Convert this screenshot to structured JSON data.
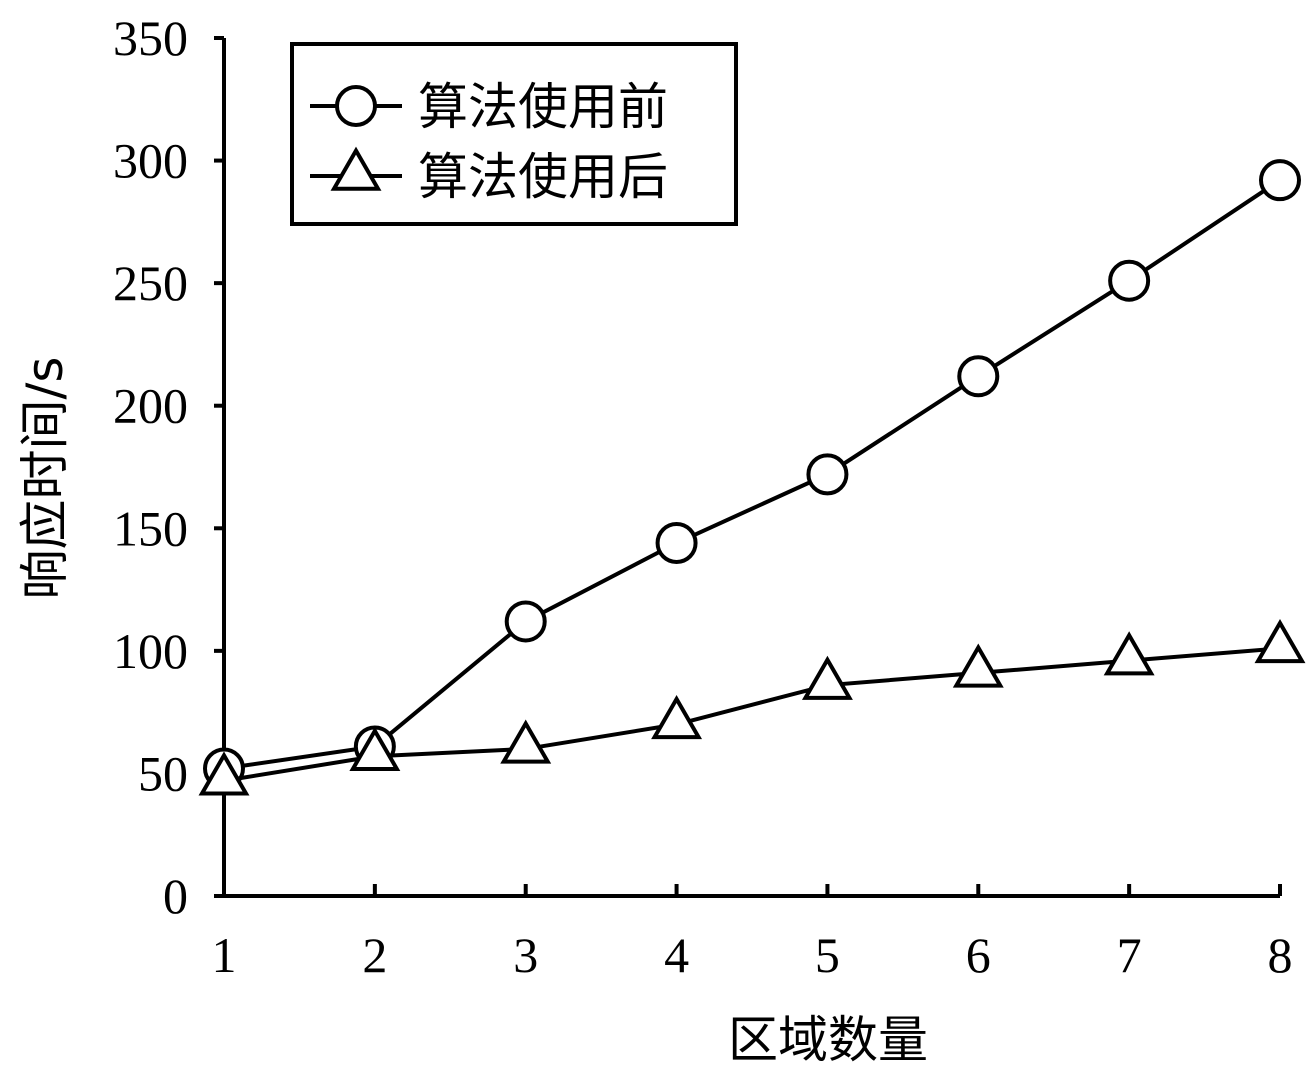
{
  "chart_data": {
    "type": "line",
    "xlabel": "区域数量",
    "ylabel": "响应时间/s",
    "x": [
      1,
      2,
      3,
      4,
      5,
      6,
      7,
      8
    ],
    "xlim": [
      1,
      8
    ],
    "ylim": [
      0,
      350
    ],
    "yticks": [
      0,
      50,
      100,
      150,
      200,
      250,
      300,
      350
    ],
    "grid": false,
    "legend_position": "top-left",
    "series": [
      {
        "name": "算法使用前",
        "marker": "circle",
        "values": [
          52,
          61,
          112,
          144,
          172,
          212,
          251,
          292
        ]
      },
      {
        "name": "算法使用后",
        "marker": "triangle",
        "values": [
          47,
          57,
          60,
          70,
          86,
          91,
          96,
          101
        ]
      }
    ]
  }
}
